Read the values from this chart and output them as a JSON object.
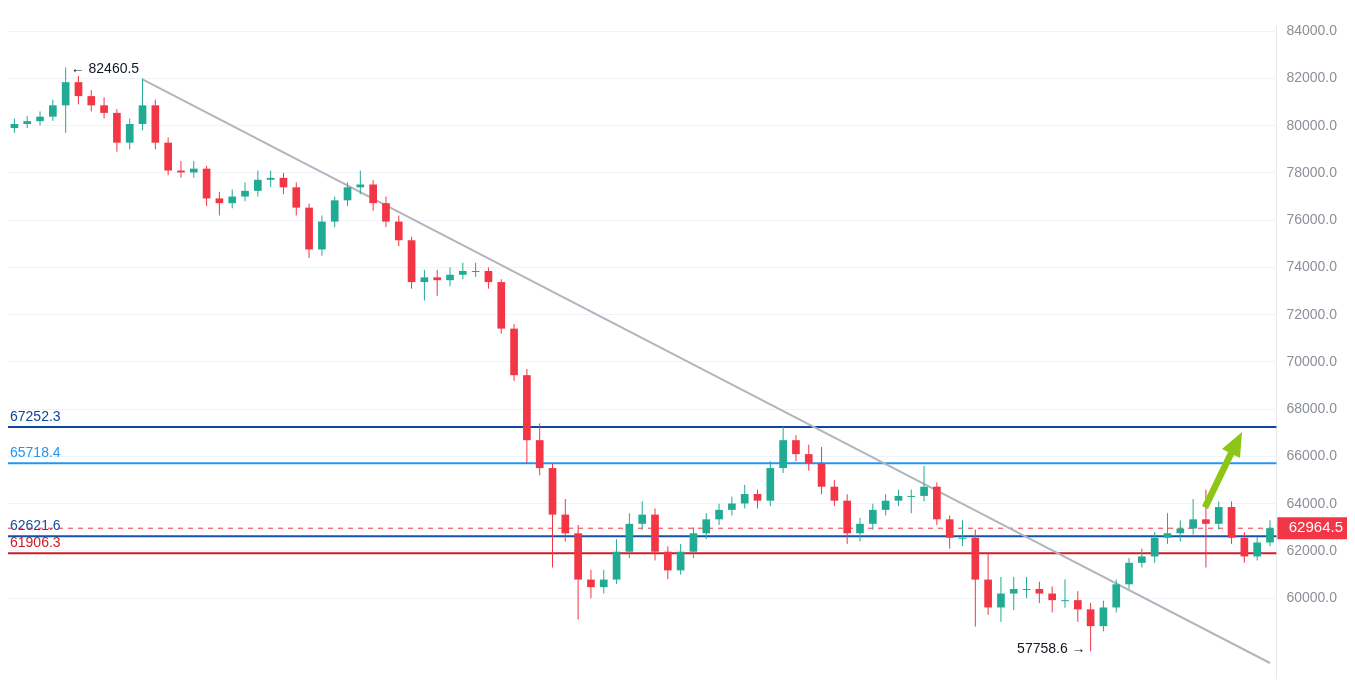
{
  "chart_data": {
    "type": "candlestick",
    "categories": [
      null,
      null,
      null,
      null,
      null,
      null,
      null,
      null,
      null,
      null,
      null,
      null,
      null,
      null,
      null,
      null,
      null,
      null,
      null,
      null,
      null,
      null,
      null,
      null,
      null,
      null,
      null,
      null,
      null,
      null,
      null,
      null,
      null,
      null,
      null,
      null,
      null,
      null,
      null,
      null,
      null,
      null,
      null,
      null,
      null,
      null,
      null,
      null,
      null,
      null,
      null,
      null,
      null,
      null,
      null,
      null,
      null,
      null,
      null,
      null,
      null,
      null,
      null,
      null,
      null,
      null,
      null,
      null,
      null,
      null,
      null,
      null,
      null,
      null,
      null,
      null,
      null,
      null,
      null,
      null,
      null,
      null,
      null,
      null,
      null,
      null,
      null,
      null,
      null,
      null,
      null,
      null,
      null,
      null,
      null,
      null,
      null,
      null,
      null
    ],
    "ylim": [
      56600,
      84200
    ],
    "yticks": [
      {
        "value": 60000,
        "label": "60000.0"
      },
      {
        "value": 62000,
        "label": "62000.0"
      },
      {
        "value": 64000,
        "label": "64000.0"
      },
      {
        "value": 66000,
        "label": "66000.0"
      },
      {
        "value": 68000,
        "label": "68000.0"
      },
      {
        "value": 70000,
        "label": "70000.0"
      },
      {
        "value": 72000,
        "label": "72000.0"
      },
      {
        "value": 74000,
        "label": "74000.0"
      },
      {
        "value": 76000,
        "label": "76000.0"
      },
      {
        "value": 78000,
        "label": "78000.0"
      },
      {
        "value": 80000,
        "label": "80000.0"
      },
      {
        "value": 82000,
        "label": "82000.0"
      },
      {
        "value": 84000,
        "label": "84000.0"
      }
    ],
    "tick_labels": "y",
    "grid": "y",
    "colors": [
      "#22ab94",
      "#22ab94",
      "#22ab94",
      "#22ab94",
      "#22ab94",
      "#f23645",
      "#f23645",
      "#f23645",
      "#f23645",
      "#22ab94",
      "#22ab94",
      "#f23645",
      "#f23645",
      "#f23645",
      "#22ab94",
      "#f23645",
      "#f23645",
      "#22ab94",
      "#22ab94",
      "#22ab94",
      "#22ab94",
      "#f23645",
      "#f23645",
      "#f23645",
      "#22ab94",
      "#22ab94",
      "#22ab94",
      "#22ab94",
      "#f23645",
      "#f23645",
      "#f23645",
      "#f23645",
      "#22ab94",
      "#f23645",
      "#22ab94",
      "#22ab94",
      "#22ab94",
      "#f23645",
      "#f23645",
      "#f23645",
      "#f23645",
      "#f23645",
      "#f23645",
      "#f23645",
      "#f23645",
      "#f23645",
      "#22ab94",
      "#22ab94",
      "#22ab94",
      "#22ab94",
      "#f23645",
      "#f23645",
      "#22ab94",
      "#22ab94",
      "#22ab94",
      "#22ab94",
      "#22ab94",
      "#22ab94",
      "#f23645",
      "#22ab94",
      "#22ab94",
      "#f23645",
      "#f23645",
      "#f23645",
      "#f23645",
      "#f23645",
      "#22ab94",
      "#22ab94",
      "#22ab94",
      "#22ab94",
      "#22ab94",
      "#22ab94",
      "#f23645",
      "#f23645",
      "#22ab94",
      "#f23645",
      "#f23645",
      "#22ab94",
      "#22ab94",
      "#22ab94",
      "#f23645",
      "#f23645",
      "#22ab94",
      "#f23645",
      "#f23645",
      "#22ab94",
      "#22ab94",
      "#22ab94",
      "#22ab94",
      "#22ab94",
      "#22ab94",
      "#22ab94",
      "#22ab94",
      "#f23645",
      "#22ab94",
      "#f23645",
      "#f23645",
      "#22ab94",
      "#22ab94"
    ],
    "ohlc": [
      [
        79900,
        80300,
        79700,
        80070
      ],
      [
        80070,
        80400,
        79900,
        80190
      ],
      [
        80190,
        80600,
        80000,
        80380
      ],
      [
        80380,
        81100,
        80200,
        80860
      ],
      [
        80860,
        82460.5,
        79700,
        81840
      ],
      [
        81840,
        82100,
        80900,
        81250
      ],
      [
        81250,
        81500,
        80600,
        80860
      ],
      [
        80860,
        81200,
        80300,
        80540
      ],
      [
        80540,
        80700,
        78900,
        79280
      ],
      [
        79280,
        80300,
        79000,
        80070
      ],
      [
        80070,
        82000,
        79800,
        80860
      ],
      [
        80860,
        81100,
        79000,
        79280
      ],
      [
        79280,
        79500,
        77900,
        78100
      ],
      [
        78100,
        78500,
        77800,
        78020
      ],
      [
        78020,
        78500,
        77800,
        78180
      ],
      [
        78180,
        78300,
        76600,
        76920
      ],
      [
        76920,
        77200,
        76200,
        76720
      ],
      [
        76720,
        77300,
        76500,
        77000
      ],
      [
        77000,
        77600,
        76800,
        77240
      ],
      [
        77240,
        78100,
        77000,
        77710
      ],
      [
        77710,
        78100,
        77400,
        77790
      ],
      [
        77790,
        78000,
        77100,
        77390
      ],
      [
        77390,
        77600,
        76200,
        76530
      ],
      [
        76530,
        76700,
        74400,
        74760
      ],
      [
        74760,
        76200,
        74500,
        75940
      ],
      [
        75940,
        77000,
        75700,
        76840
      ],
      [
        76840,
        77600,
        76600,
        77390
      ],
      [
        77390,
        78100,
        77100,
        77510
      ],
      [
        77510,
        77700,
        76400,
        76720
      ],
      [
        76720,
        77000,
        75700,
        75940
      ],
      [
        75940,
        76200,
        74900,
        75150
      ],
      [
        75150,
        75300,
        73100,
        73380
      ],
      [
        73380,
        73900,
        72600,
        73580
      ],
      [
        73580,
        73900,
        72800,
        73460
      ],
      [
        73460,
        74000,
        73200,
        73690
      ],
      [
        73690,
        74200,
        73500,
        73850
      ],
      [
        73850,
        74200,
        73600,
        73850
      ],
      [
        73850,
        74000,
        73100,
        73380
      ],
      [
        73380,
        73500,
        71200,
        71410
      ],
      [
        71410,
        71600,
        69200,
        69440
      ],
      [
        69440,
        69700,
        65700,
        66690
      ],
      [
        66690,
        67400,
        65200,
        65510
      ],
      [
        65510,
        65700,
        61300,
        63540
      ],
      [
        63540,
        64200,
        62400,
        62750
      ],
      [
        62750,
        63100,
        59100,
        60790
      ],
      [
        60790,
        61200,
        60000,
        60470
      ],
      [
        60470,
        61200,
        60200,
        60790
      ],
      [
        60790,
        62500,
        60600,
        61970
      ],
      [
        61970,
        63600,
        61700,
        63150
      ],
      [
        63150,
        64100,
        62900,
        63540
      ],
      [
        63540,
        63800,
        61600,
        61970
      ],
      [
        61970,
        62200,
        60800,
        61180
      ],
      [
        61180,
        62300,
        61000,
        61970
      ],
      [
        61970,
        63000,
        61700,
        62750
      ],
      [
        62750,
        63600,
        62500,
        63340
      ],
      [
        63340,
        64000,
        63100,
        63740
      ],
      [
        63740,
        64300,
        63500,
        64010
      ],
      [
        64010,
        64800,
        63800,
        64410
      ],
      [
        64410,
        64600,
        63800,
        64130
      ],
      [
        64130,
        65800,
        63900,
        65510
      ],
      [
        65510,
        67252.3,
        65300,
        66690
      ],
      [
        66690,
        66900,
        65800,
        66100
      ],
      [
        66100,
        66500,
        65400,
        65710
      ],
      [
        65710,
        66400,
        64400,
        64720
      ],
      [
        64720,
        65000,
        63900,
        64130
      ],
      [
        64130,
        64400,
        62300,
        62750
      ],
      [
        62750,
        63400,
        62400,
        63150
      ],
      [
        63150,
        64000,
        62900,
        63740
      ],
      [
        63740,
        64400,
        63500,
        64130
      ],
      [
        64130,
        64600,
        63900,
        64330
      ],
      [
        64330,
        64600,
        63600,
        64330
      ],
      [
        64330,
        65600,
        64100,
        64720
      ],
      [
        64720,
        64900,
        63100,
        63340
      ],
      [
        63340,
        63500,
        62100,
        62560
      ],
      [
        62560,
        63300,
        62200,
        62560
      ],
      [
        62560,
        62900,
        58800,
        60790
      ],
      [
        60790,
        61900,
        59300,
        59610
      ],
      [
        59610,
        60900,
        59000,
        60200
      ],
      [
        60200,
        60900,
        59500,
        60390
      ],
      [
        60390,
        60900,
        60000,
        60390
      ],
      [
        60390,
        60700,
        59800,
        60200
      ],
      [
        60200,
        60500,
        59400,
        59920
      ],
      [
        59920,
        60800,
        59600,
        59920
      ],
      [
        59920,
        60300,
        59000,
        59530
      ],
      [
        59530,
        59800,
        57758.6,
        58820
      ],
      [
        58820,
        59900,
        58600,
        59610
      ],
      [
        59610,
        60800,
        59400,
        60590
      ],
      [
        60590,
        61700,
        60400,
        61500
      ],
      [
        61500,
        62100,
        61300,
        61770
      ],
      [
        61770,
        62800,
        61500,
        62560
      ],
      [
        62560,
        63600,
        62300,
        62750
      ],
      [
        62750,
        63300,
        62400,
        62950
      ],
      [
        62950,
        64200,
        62700,
        63340
      ],
      [
        63340,
        64600,
        61300,
        63150
      ],
      [
        63150,
        64100,
        62900,
        63860
      ],
      [
        63860,
        64100,
        62300,
        62560
      ],
      [
        62560,
        62800,
        61500,
        61770
      ],
      [
        61770,
        62600,
        61600,
        62360
      ],
      [
        62360,
        63300,
        62200,
        62964.5
      ]
    ],
    "series": [
      {
        "type": "line",
        "color": "#b2b5be",
        "values": [
          null,
          null,
          null,
          null,
          null,
          null,
          null,
          null,
          null,
          null,
          81960,
          null,
          null,
          null,
          null,
          null,
          null,
          null,
          null,
          null,
          null,
          null,
          null,
          null,
          null,
          null,
          null,
          null,
          null,
          null,
          null,
          null,
          null,
          null,
          null,
          null,
          null,
          null,
          null,
          null,
          null,
          null,
          null,
          null,
          null,
          null,
          null,
          null,
          null,
          null,
          null,
          null,
          null,
          null,
          null,
          null,
          null,
          null,
          null,
          null,
          null,
          null,
          null,
          null,
          null,
          null,
          null,
          null,
          null,
          null,
          null,
          null,
          null,
          null,
          null,
          null,
          null,
          null,
          null,
          null,
          null,
          null,
          null,
          null,
          null,
          null,
          null,
          null,
          null,
          null,
          null,
          null,
          null,
          null,
          null,
          null,
          null,
          null,
          57260
        ]
      }
    ],
    "ref_lines": [
      {
        "axis": "y",
        "value": 62964.5,
        "label": "62964.5",
        "color": "#f23645",
        "line_style": "dashed"
      },
      {
        "axis": "y",
        "value": 65718.4,
        "label": "65718.4",
        "color": "#2196f3"
      },
      {
        "axis": "y",
        "value": 67252.3,
        "label": "67252.3",
        "color": "#0d47a1"
      },
      {
        "axis": "y",
        "value": 62621.6,
        "label": "62621.6",
        "color": "#1650a8"
      },
      {
        "axis": "y",
        "value": 61906.3,
        "label": "61906.3",
        "color": "#d01c24"
      }
    ],
    "annotations": [
      "← 82460.5",
      "57758.6 →"
    ]
  }
}
